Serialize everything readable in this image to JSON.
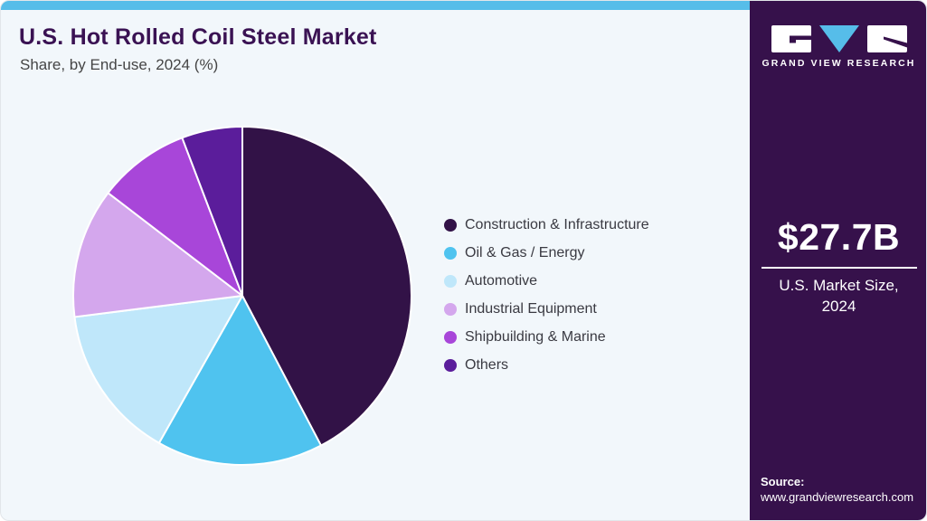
{
  "header": {
    "title": "U.S. Hot Rolled Coil Steel Market",
    "subtitle": "Share, by End-use, 2024 (%)"
  },
  "chart_data": {
    "type": "pie",
    "title": "U.S. Hot Rolled Coil Steel Market Share, by End-use, 2024 (%)",
    "labels": [
      "Construction & Infrastructure",
      "Oil & Gas / Energy",
      "Automotive",
      "Industrial Equipment",
      "Shipbuilding & Marine",
      "Others"
    ],
    "values": [
      42.3,
      15.9,
      14.8,
      12.4,
      8.8,
      5.8
    ],
    "unit": "%",
    "colors": [
      "#321247",
      "#4fc3ef",
      "#bfe7fa",
      "#d4a7ed",
      "#a846d9",
      "#5b1d9b"
    ],
    "start_angle_deg": 0,
    "direction": "clockwise",
    "legend_position": "right",
    "slice_border_color": "#ffffff",
    "accent_bar_color": "#56bde9"
  },
  "sidebar": {
    "logo_text": "GRAND VIEW RESEARCH",
    "market_size_value": "$27.7B",
    "market_size_label_line1": "U.S. Market Size,",
    "market_size_label_line2": "2024",
    "source_label": "Source:",
    "source_url": "www.grandviewresearch.com",
    "background_color": "#36114b"
  }
}
